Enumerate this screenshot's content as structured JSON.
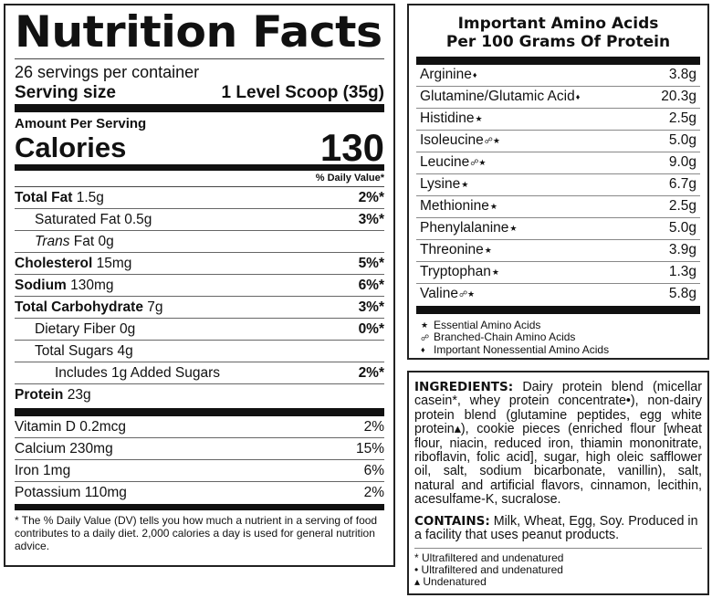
{
  "nutrition": {
    "title": "Nutrition Facts",
    "servings": "26 servings per container",
    "serving_size_label": "Serving size",
    "serving_size_value": "1 Level Scoop (35g)",
    "amount_per_serving": "Amount Per Serving",
    "calories_label": "Calories",
    "calories_value": "130",
    "dv_header": "% Daily Value*",
    "rows": [
      {
        "label": "Total Fat",
        "amount": "1.5g",
        "dv": "2%*"
      },
      {
        "label": "Saturated Fat",
        "amount": "0.5g",
        "dv": "3%*"
      },
      {
        "label_italic": "Trans",
        "label": "Fat",
        "amount": "0g",
        "dv": ""
      },
      {
        "label": "Cholesterol",
        "amount": "15mg",
        "dv": "5%*"
      },
      {
        "label": "Sodium",
        "amount": "130mg",
        "dv": "6%*"
      },
      {
        "label": "Total Carbohydrate",
        "amount": "7g",
        "dv": "3%*"
      },
      {
        "label": "Dietary Fiber",
        "amount": "0g",
        "dv": "0%*"
      },
      {
        "label": "Total Sugars",
        "amount": "4g",
        "dv": ""
      },
      {
        "label": "Includes",
        "amount": "1g Added Sugars",
        "dv": "2%*"
      },
      {
        "label": "Protein",
        "amount": "23g",
        "dv": ""
      }
    ],
    "vitamins": [
      {
        "label": "Vitamin D",
        "amount": "0.2mcg",
        "dv": "2%"
      },
      {
        "label": "Calcium",
        "amount": "230mg",
        "dv": "15%"
      },
      {
        "label": "Iron",
        "amount": "1mg",
        "dv": "6%"
      },
      {
        "label": "Potassium",
        "amount": "110mg",
        "dv": "2%"
      }
    ],
    "footnote": "* The % Daily Value (DV) tells you how much a nutrient in a serving of food contributes to a daily diet. 2,000 calories a day is used for general nutrition advice."
  },
  "amino": {
    "title_line1": "Important Amino Acids",
    "title_line2": "Per 100 Grams Of Protein",
    "rows": [
      {
        "name": "Arginine",
        "sym": "♦",
        "value": "3.8g"
      },
      {
        "name": "Glutamine/Glutamic Acid",
        "sym": "♦",
        "value": "20.3g"
      },
      {
        "name": "Histidine",
        "sym": "★",
        "value": "2.5g"
      },
      {
        "name": "Isoleucine",
        "sym": "☍★",
        "value": "5.0g"
      },
      {
        "name": "Leucine",
        "sym": "☍★",
        "value": "9.0g"
      },
      {
        "name": "Lysine",
        "sym": "★",
        "value": "6.7g"
      },
      {
        "name": "Methionine",
        "sym": "★",
        "value": "2.5g"
      },
      {
        "name": "Phenylalanine",
        "sym": "★",
        "value": "5.0g"
      },
      {
        "name": "Threonine",
        "sym": "★",
        "value": "3.9g"
      },
      {
        "name": "Tryptophan",
        "sym": "★",
        "value": "1.3g"
      },
      {
        "name": "Valine",
        "sym": "☍★",
        "value": "5.8g"
      }
    ],
    "legend": [
      {
        "sym": "★",
        "text": "Essential Amino Acids"
      },
      {
        "sym": "☍",
        "text": "Branched-Chain Amino Acids"
      },
      {
        "sym": "♦",
        "text": "Important Nonessential Amino Acids"
      }
    ]
  },
  "ingredients": {
    "label": "INGREDIENTS:",
    "text": "Dairy protein blend (micellar casein*, whey protein concentrate•), non-dairy protein blend (glutamine peptides, egg white protein▴), cookie pieces (enriched flour [wheat flour, niacin, reduced iron, thiamin mononitrate, riboflavin, folic acid], sugar, high oleic safflower oil, salt, sodium bicarbonate, vanillin), salt, natural and artificial flavors, cinnamon, lecithin, acesulfame-K, sucralose.",
    "contains_label": "CONTAINS:",
    "contains_text": "Milk, Wheat, Egg, Soy. Produced in a facility that uses peanut products.",
    "footnotes": [
      "* Ultrafiltered and undenatured",
      "• Ultrafiltered and undenatured",
      "▴ Undenatured"
    ]
  }
}
